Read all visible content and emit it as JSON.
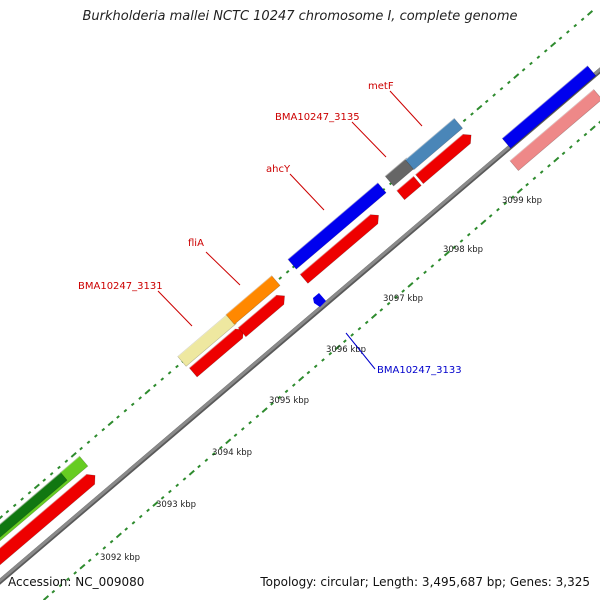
{
  "title": "Burkholderia mallei NCTC 10247 chromosome I, complete genome",
  "footer": {
    "accession": "Accession: NC_009080",
    "summary": "Topology: circular; Length: 3,495,687 bp; Genes: 3,325"
  },
  "scale_labels": [
    {
      "text": "3092 kbp",
      "kbp": 3092
    },
    {
      "text": "3093 kbp",
      "kbp": 3093
    },
    {
      "text": "3094 kbp",
      "kbp": 3094
    },
    {
      "text": "3095 kbp",
      "kbp": 3095
    },
    {
      "text": "3096 kbp",
      "kbp": 3096
    },
    {
      "text": "3097 kbp",
      "kbp": 3097
    },
    {
      "text": "3098 kbp",
      "kbp": 3098
    },
    {
      "text": "3099 kbp",
      "kbp": 3099
    }
  ],
  "gene_labels": [
    {
      "text": "BMA10247_3131",
      "color": "#cc0000"
    },
    {
      "text": "fliA",
      "color": "#cc0000"
    },
    {
      "text": "ahcY",
      "color": "#cc0000"
    },
    {
      "text": "BMA10247_3135",
      "color": "#cc0000"
    },
    {
      "text": "metF",
      "color": "#cc0000"
    },
    {
      "text": "BMA10247_3133",
      "color": "#0000cc"
    }
  ],
  "colors": {
    "backbone": "#8a8a8a",
    "scale_ticks": "#2e8b2e",
    "cds": "#ee0000",
    "gene_blue": "#0000ee",
    "gene_yellow": "#eee8a0",
    "gene_orange": "#ff8800",
    "gene_steelblue": "#4a86b8",
    "gene_gray": "#666666",
    "gene_pink": "#ee8888",
    "gene_green": "#66cc22"
  }
}
